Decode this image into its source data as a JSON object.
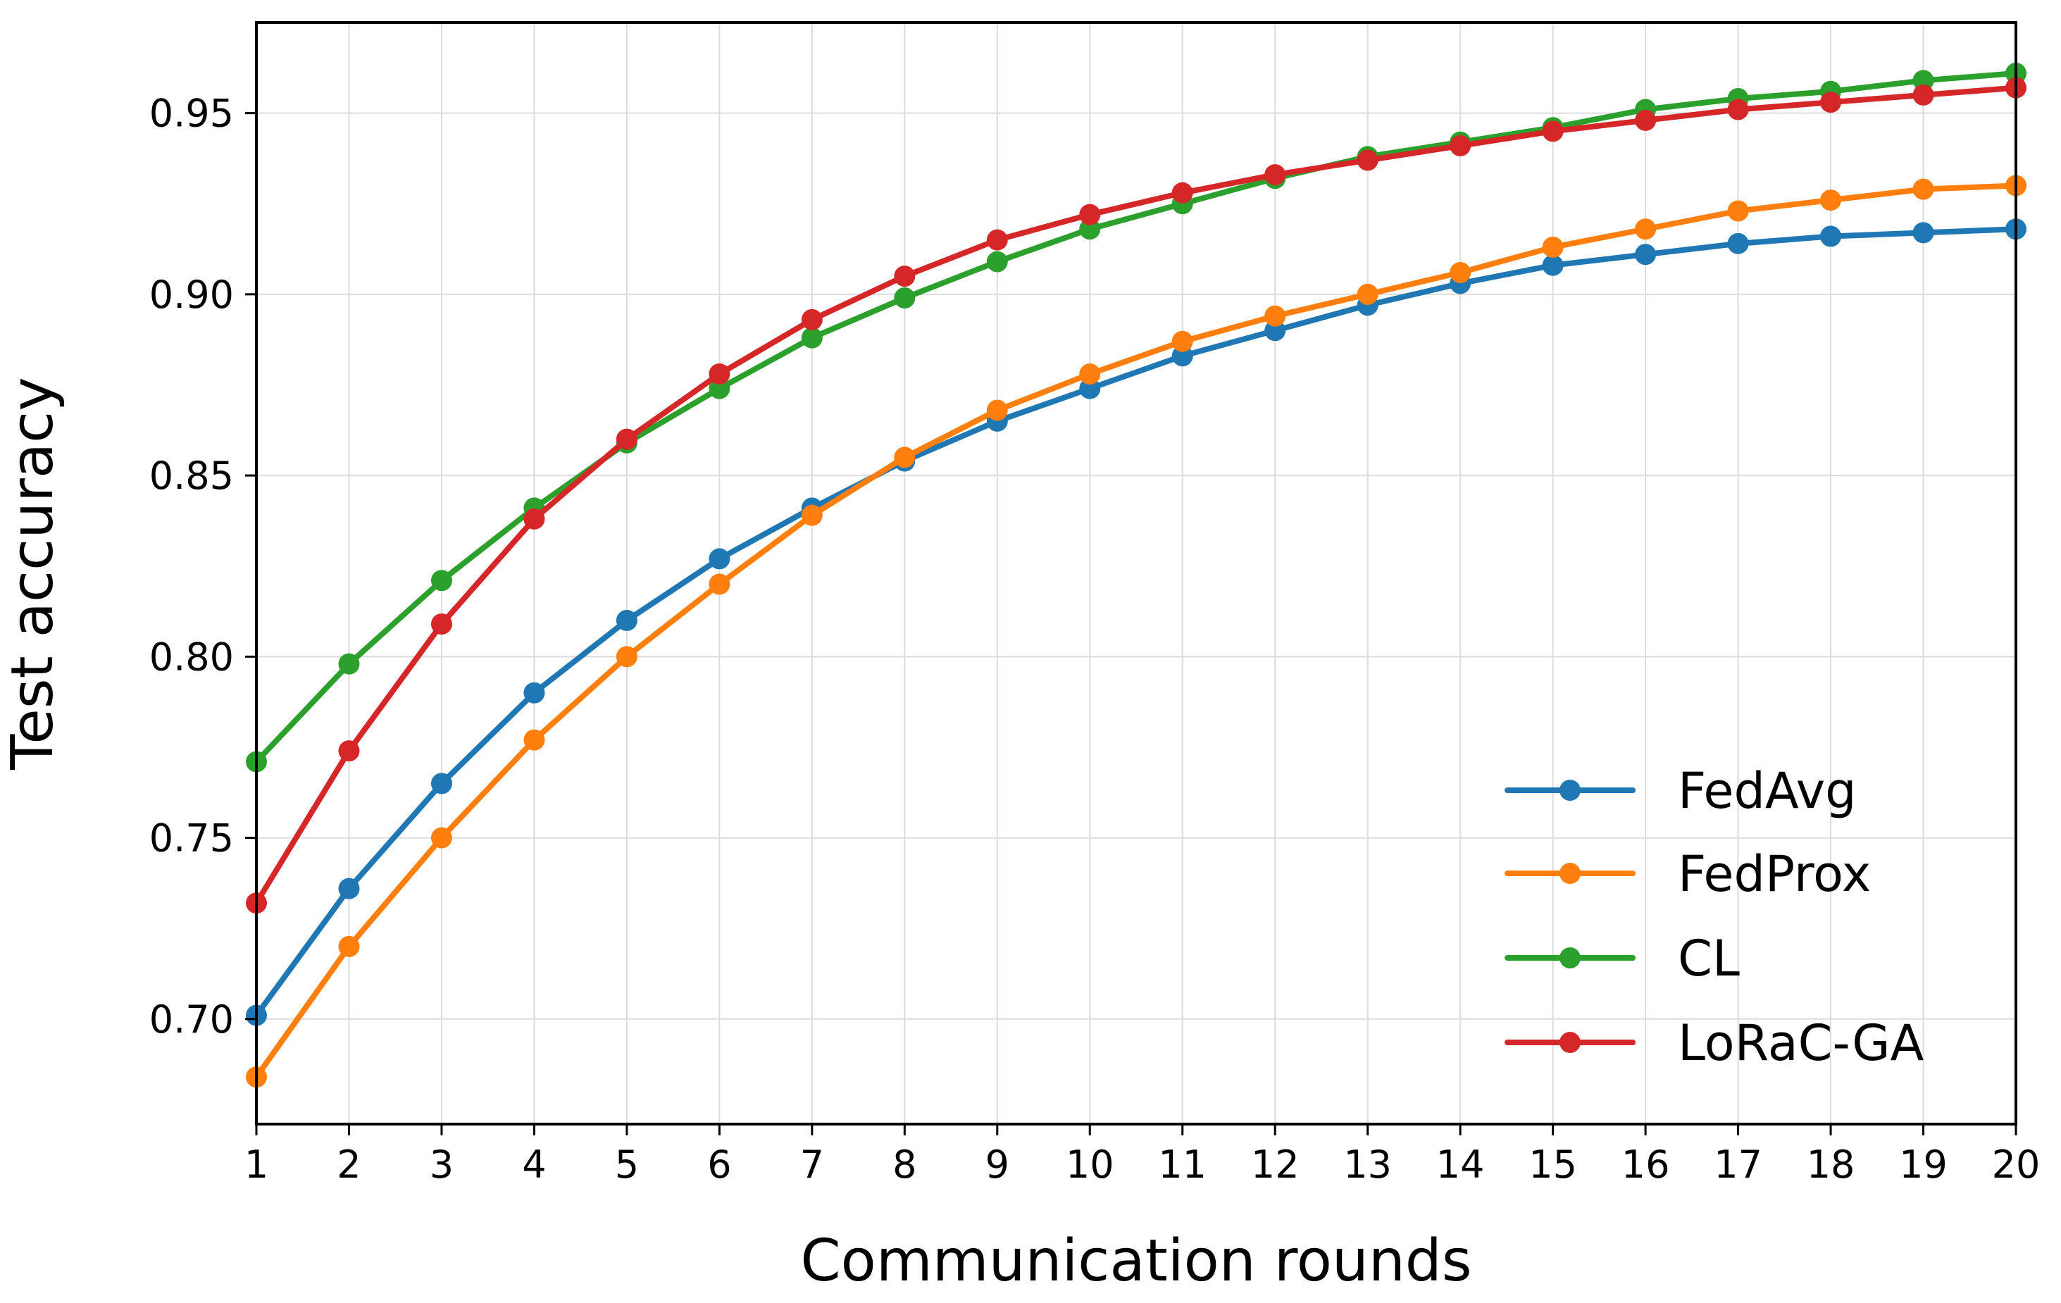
{
  "chart_data": {
    "type": "line",
    "title": "",
    "xlabel": "Communication rounds",
    "ylabel": "Test accuracy",
    "xlim": [
      1,
      20
    ],
    "ylim": [
      0.671,
      0.975
    ],
    "xticks": [
      1,
      2,
      3,
      4,
      5,
      6,
      7,
      8,
      9,
      10,
      11,
      12,
      13,
      14,
      15,
      16,
      17,
      18,
      19,
      20
    ],
    "yticks": [
      "0.70",
      "0.75",
      "0.80",
      "0.85",
      "0.90",
      "0.95"
    ],
    "grid": true,
    "legend_position": "lower-right",
    "x": [
      1,
      2,
      3,
      4,
      5,
      6,
      7,
      8,
      9,
      10,
      11,
      12,
      13,
      14,
      15,
      16,
      17,
      18,
      19,
      20
    ],
    "series": [
      {
        "name": "FedAvg",
        "color": "#1f77b4",
        "values": [
          0.701,
          0.736,
          0.765,
          0.79,
          0.81,
          0.827,
          0.841,
          0.854,
          0.865,
          0.874,
          0.883,
          0.89,
          0.897,
          0.903,
          0.908,
          0.911,
          0.914,
          0.916,
          0.917,
          0.918
        ]
      },
      {
        "name": "FedProx",
        "color": "#ff7f0e",
        "values": [
          0.684,
          0.72,
          0.75,
          0.777,
          0.8,
          0.82,
          0.839,
          0.855,
          0.868,
          0.878,
          0.887,
          0.894,
          0.9,
          0.906,
          0.913,
          0.918,
          0.923,
          0.926,
          0.929,
          0.93
        ]
      },
      {
        "name": "CL",
        "color": "#2ca02c",
        "values": [
          0.771,
          0.798,
          0.821,
          0.841,
          0.859,
          0.874,
          0.888,
          0.899,
          0.909,
          0.918,
          0.925,
          0.932,
          0.938,
          0.942,
          0.946,
          0.951,
          0.954,
          0.956,
          0.959,
          0.961
        ]
      },
      {
        "name": "LoRaC-GA",
        "color": "#d62728",
        "values": [
          0.732,
          0.774,
          0.809,
          0.838,
          0.86,
          0.878,
          0.893,
          0.905,
          0.915,
          0.922,
          0.928,
          0.933,
          0.937,
          0.941,
          0.945,
          0.948,
          0.951,
          0.953,
          0.955,
          0.957
        ]
      }
    ]
  }
}
